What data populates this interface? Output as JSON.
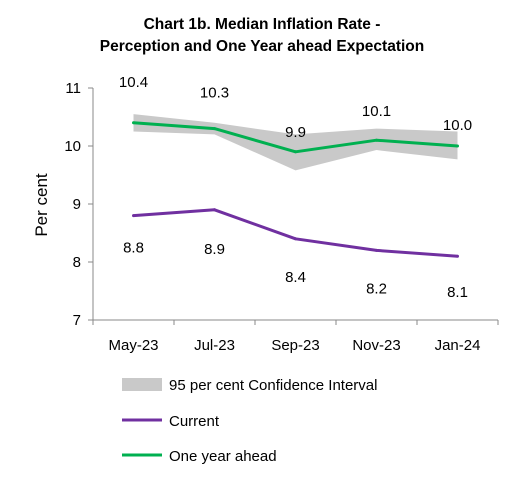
{
  "chart_data": {
    "type": "line",
    "title_line1": "Chart 1b. Median Inflation Rate -",
    "title_line2": "Perception and One Year ahead Expectation",
    "ylabel": "Per cent",
    "xlabel": "",
    "categories": [
      "May-23",
      "Jul-23",
      "Sep-23",
      "Nov-23",
      "Jan-24"
    ],
    "ylim": [
      7,
      11
    ],
    "yticks": [
      7,
      8,
      9,
      10,
      11
    ],
    "series": [
      {
        "name": "Current",
        "color": "#7030a0",
        "values": [
          8.8,
          8.9,
          8.4,
          8.2,
          8.1
        ],
        "labels": [
          "8.8",
          "8.9",
          "8.4",
          "8.2",
          "8.1"
        ]
      },
      {
        "name": "One year ahead",
        "color": "#00b050",
        "values": [
          10.4,
          10.3,
          9.9,
          10.1,
          10.0
        ],
        "labels": [
          "10.4",
          "10.3",
          "9.9",
          "10.1",
          "10.0"
        ]
      }
    ],
    "band": {
      "name": "95 per cent Confidence Interval",
      "color": "#c9c9c9",
      "lower": [
        10.25,
        10.2,
        9.58,
        9.93,
        9.77
      ],
      "upper": [
        10.55,
        10.4,
        10.2,
        10.3,
        10.25
      ]
    },
    "legend_position": "bottom",
    "grid": false
  }
}
